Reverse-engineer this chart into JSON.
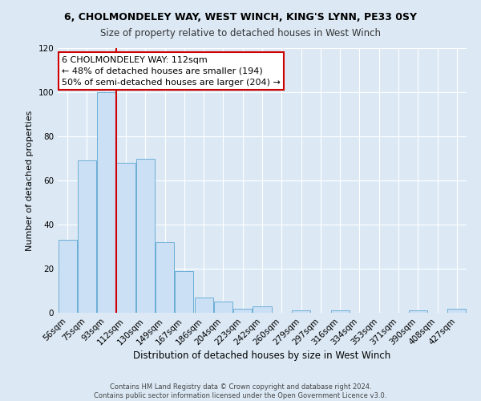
{
  "title_line1": "6, CHOLMONDELEY WAY, WEST WINCH, KING'S LYNN, PE33 0SY",
  "title_line2": "Size of property relative to detached houses in West Winch",
  "xlabel": "Distribution of detached houses by size in West Winch",
  "ylabel": "Number of detached properties",
  "bar_labels": [
    "56sqm",
    "75sqm",
    "93sqm",
    "112sqm",
    "130sqm",
    "149sqm",
    "167sqm",
    "186sqm",
    "204sqm",
    "223sqm",
    "242sqm",
    "260sqm",
    "279sqm",
    "297sqm",
    "316sqm",
    "334sqm",
    "353sqm",
    "371sqm",
    "390sqm",
    "408sqm",
    "427sqm"
  ],
  "bar_heights": [
    33,
    69,
    100,
    68,
    70,
    32,
    19,
    7,
    5,
    2,
    3,
    0,
    1,
    0,
    1,
    0,
    0,
    0,
    1,
    0,
    2
  ],
  "bar_color": "#cce0f5",
  "bar_edgecolor": "#6baed6",
  "vline_index": 3,
  "vline_color": "#cc0000",
  "ylim": [
    0,
    120
  ],
  "yticks": [
    0,
    20,
    40,
    60,
    80,
    100,
    120
  ],
  "annotation_title": "6 CHOLMONDELEY WAY: 112sqm",
  "annotation_line1": "← 48% of detached houses are smaller (194)",
  "annotation_line2": "50% of semi-detached houses are larger (204) →",
  "annotation_box_facecolor": "#ffffff",
  "annotation_box_edgecolor": "#cc0000",
  "footer_line1": "Contains HM Land Registry data © Crown copyright and database right 2024.",
  "footer_line2": "Contains public sector information licensed under the Open Government Licence v3.0.",
  "background_color": "#dce9f5",
  "plot_background_color": "#dce9f5",
  "grid_color": "#ffffff",
  "title1_fontsize": 9.0,
  "title2_fontsize": 8.5,
  "xlabel_fontsize": 8.5,
  "ylabel_fontsize": 8.0,
  "tick_fontsize": 7.5,
  "ann_fontsize": 8.0,
  "footer_fontsize": 6.0
}
